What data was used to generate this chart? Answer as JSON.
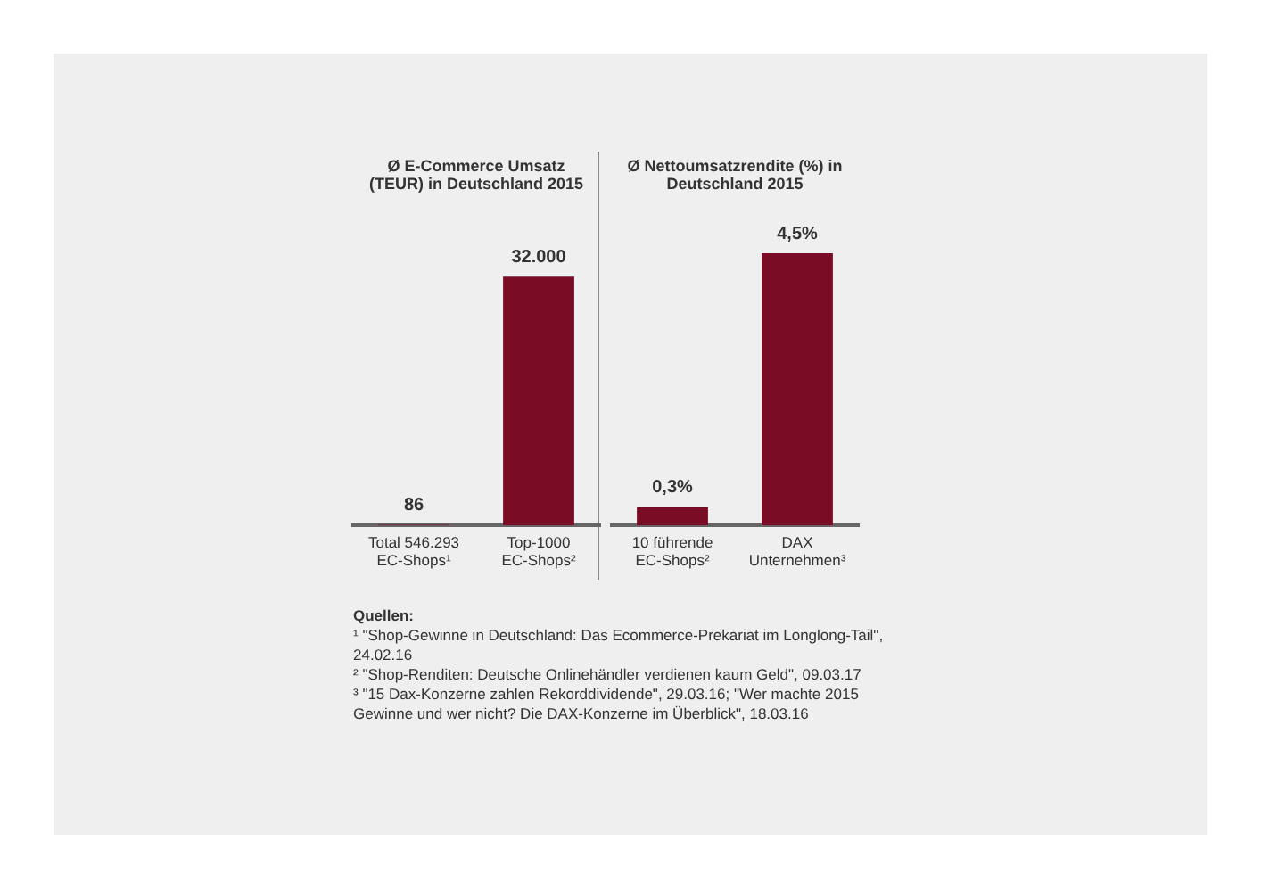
{
  "chart_data": [
    {
      "type": "bar",
      "title": "Ø E-Commerce Umsatz (TEUR) in Deutschland 2015",
      "categories": [
        "Total 546.293 EC-Shops¹",
        "Top-1000 EC-Shops²"
      ],
      "values": [
        86,
        32000
      ],
      "value_labels": [
        "86",
        "32.000"
      ],
      "color": "#7a0c25",
      "annotations": [
        "Quellen:",
        "¹ \"Shop-Gewinne in Deutschland: Das Ecommerce-Prekariat im Longlong-Tail\", 24.02.16",
        "² \"Shop-Renditen: Deutsche Onlinehändler verdienen kaum Geld\", 09.03.17",
        "³ \"15 Dax-Konzerne zahlen Rekorddividende\", 29.03.16; \"Wer machte 2015 Gewinne und wer nicht? Die DAX-Konzerne im Überblick\", 18.03.16"
      ]
    },
    {
      "type": "bar",
      "title": "Ø Nettoumsatzrendite (%) in Deutschland 2015",
      "categories": [
        "10 führende EC-Shops²",
        "DAX Unternehmen³"
      ],
      "values": [
        0.3,
        4.5
      ],
      "value_labels": [
        "0,3%",
        "4,5%"
      ],
      "color": "#7a0c25"
    }
  ]
}
